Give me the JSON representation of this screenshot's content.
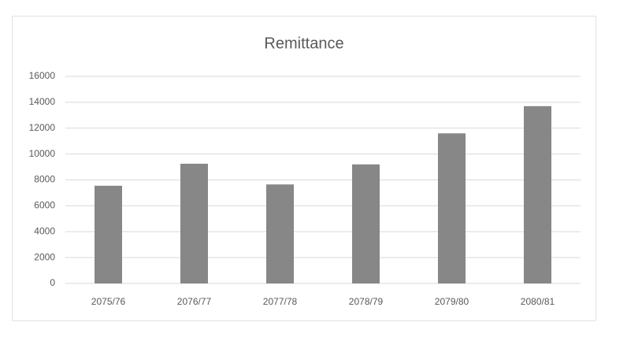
{
  "chart_data": {
    "type": "bar",
    "title": "Remittance",
    "categories": [
      "2075/76",
      "2076/77",
      "2077/78",
      "2078/79",
      "2079/80",
      "2080/81"
    ],
    "values": [
      7550,
      9250,
      7650,
      9200,
      11600,
      13700
    ],
    "color": "#878787",
    "ylim": [
      0,
      16000
    ],
    "yticks": [
      0,
      2000,
      4000,
      6000,
      8000,
      10000,
      12000,
      14000,
      16000
    ],
    "grid": true
  }
}
